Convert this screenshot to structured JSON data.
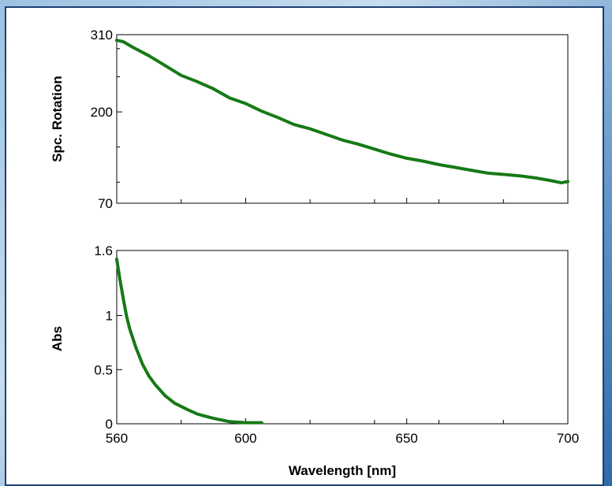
{
  "chart_data": [
    {
      "type": "line",
      "ylabel": "Spc. Rotation",
      "xlim": [
        560,
        700
      ],
      "ylim": [
        70,
        310
      ],
      "yticks": [
        70,
        200,
        310
      ],
      "x_tick_labels_shown": false,
      "grid": false,
      "series": [
        {
          "color": "#167a16",
          "x": [
            560,
            562,
            565,
            570,
            575,
            580,
            585,
            590,
            595,
            600,
            605,
            610,
            615,
            620,
            625,
            630,
            635,
            640,
            645,
            650,
            655,
            660,
            665,
            670,
            675,
            680,
            685,
            690,
            695,
            698,
            700
          ],
          "y": [
            302,
            300,
            292,
            280,
            266,
            252,
            243,
            233,
            220,
            212,
            201,
            192,
            182,
            176,
            168,
            160,
            154,
            147,
            140,
            134,
            130,
            125,
            121,
            117,
            113,
            111,
            109,
            106,
            102,
            99,
            101
          ]
        }
      ]
    },
    {
      "type": "line",
      "ylabel": "Abs",
      "xlabel": "Wavelength [nm]",
      "xlim": [
        560,
        700
      ],
      "ylim": [
        0,
        1.6
      ],
      "xticks": [
        560,
        600,
        650,
        700
      ],
      "yticks": [
        0,
        0.5,
        1,
        1.6
      ],
      "grid": false,
      "series": [
        {
          "color": "#167a16",
          "x": [
            560,
            561,
            562,
            563,
            564,
            566,
            568,
            570,
            572,
            575,
            578,
            582,
            585,
            590,
            595,
            600,
            605
          ],
          "y": [
            1.52,
            1.33,
            1.16,
            1.0,
            0.88,
            0.7,
            0.55,
            0.44,
            0.36,
            0.26,
            0.19,
            0.13,
            0.09,
            0.05,
            0.02,
            0.01,
            0.01
          ]
        }
      ]
    }
  ]
}
